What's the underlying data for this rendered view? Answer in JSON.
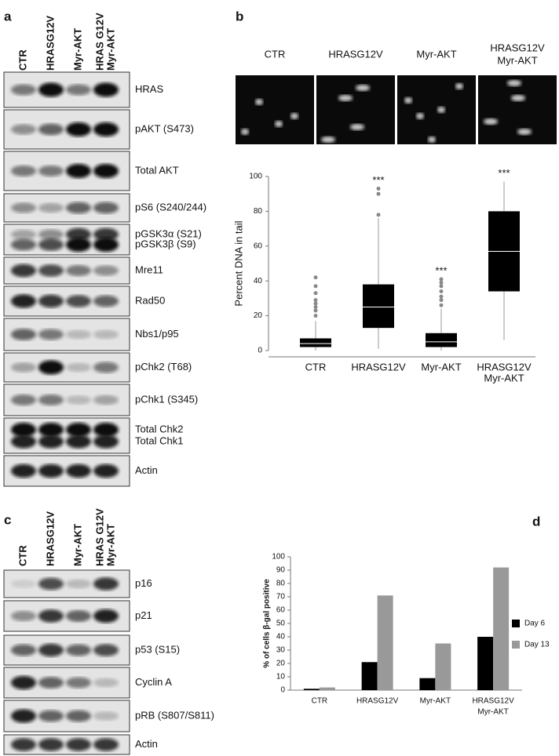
{
  "panel_a": {
    "label": "a",
    "lanes": [
      [
        "CTR"
      ],
      [
        "HRASG12V"
      ],
      [
        "Myr-AKT"
      ],
      [
        "HRAS G12V",
        "Myr-AKT"
      ]
    ],
    "rows": [
      [
        "HRAS"
      ],
      [
        "pAKT (S473)"
      ],
      [
        "Total AKT"
      ],
      [
        "pS6 (S240/244)"
      ],
      [
        "pGSK3α (S21)",
        "pGSK3β (S9)"
      ],
      [
        "Mre11"
      ],
      [
        "Rad50"
      ],
      [
        "Nbs1/p95"
      ],
      [
        "pChk2 (T68)"
      ],
      [
        "pChk1 (S345)"
      ],
      [
        "Total Chk2",
        "Total Chk1"
      ],
      [
        "Actin"
      ]
    ]
  },
  "panel_b": {
    "label": "b",
    "images": [
      [
        "CTR"
      ],
      [
        "HRASG12V"
      ],
      [
        "Myr-AKT"
      ],
      [
        "HRASG12V",
        "Myr-AKT"
      ]
    ]
  },
  "panel_c": {
    "label": "c",
    "lanes": [
      [
        "CTR"
      ],
      [
        "HRASG12V"
      ],
      [
        "Myr-AKT"
      ],
      [
        "HRAS G12V",
        "Myr-AKT"
      ]
    ],
    "rows": [
      [
        "p16"
      ],
      [
        "p21"
      ],
      [
        "p53 (S15)"
      ],
      [
        "Cyclin A"
      ],
      [
        "pRB (S807/S811)"
      ],
      [
        "Actin"
      ]
    ]
  },
  "panel_d": {
    "label": "d"
  },
  "chart_data": [
    {
      "type": "box",
      "y_label": "Percent DNA in tail",
      "categories": [
        [
          "CTR"
        ],
        [
          "HRASG12V"
        ],
        [
          "Myr-AKT"
        ],
        [
          "HRASG12V",
          "Myr-AKT"
        ]
      ],
      "whisker_low": [
        0,
        1,
        0,
        6
      ],
      "q1": [
        2,
        13,
        2,
        34
      ],
      "median": [
        4,
        25,
        5,
        57
      ],
      "q3": [
        7,
        38,
        10,
        80
      ],
      "whisker_high": [
        17,
        76,
        24,
        97
      ],
      "outliers": [
        [
          20,
          23,
          25,
          27,
          29,
          33,
          37,
          42
        ],
        [
          78,
          90,
          93
        ],
        [
          26,
          29,
          31,
          34,
          37,
          39,
          41
        ],
        []
      ],
      "annotations": [
        null,
        "***",
        "***",
        "***"
      ],
      "color": "#000000",
      "ylim": [
        0,
        100
      ],
      "yticks": [
        0,
        20,
        40,
        60,
        80,
        100
      ]
    },
    {
      "type": "bar",
      "y_label": "% of cells β-gal positive",
      "categories": [
        [
          "CTR"
        ],
        [
          "HRASG12V"
        ],
        [
          "Myr-AKT"
        ],
        [
          "HRASG12V",
          "Myr-AKT"
        ]
      ],
      "series": [
        {
          "name": "Day 6",
          "color": "#000000",
          "values": [
            1,
            21,
            9,
            40
          ]
        },
        {
          "name": "Day 13",
          "color": "#999999",
          "values": [
            2,
            71,
            35,
            92
          ]
        }
      ],
      "ylim": [
        0,
        100
      ],
      "yticks": [
        0,
        10,
        20,
        30,
        40,
        50,
        60,
        70,
        80,
        90,
        100
      ],
      "legend": "right"
    }
  ]
}
